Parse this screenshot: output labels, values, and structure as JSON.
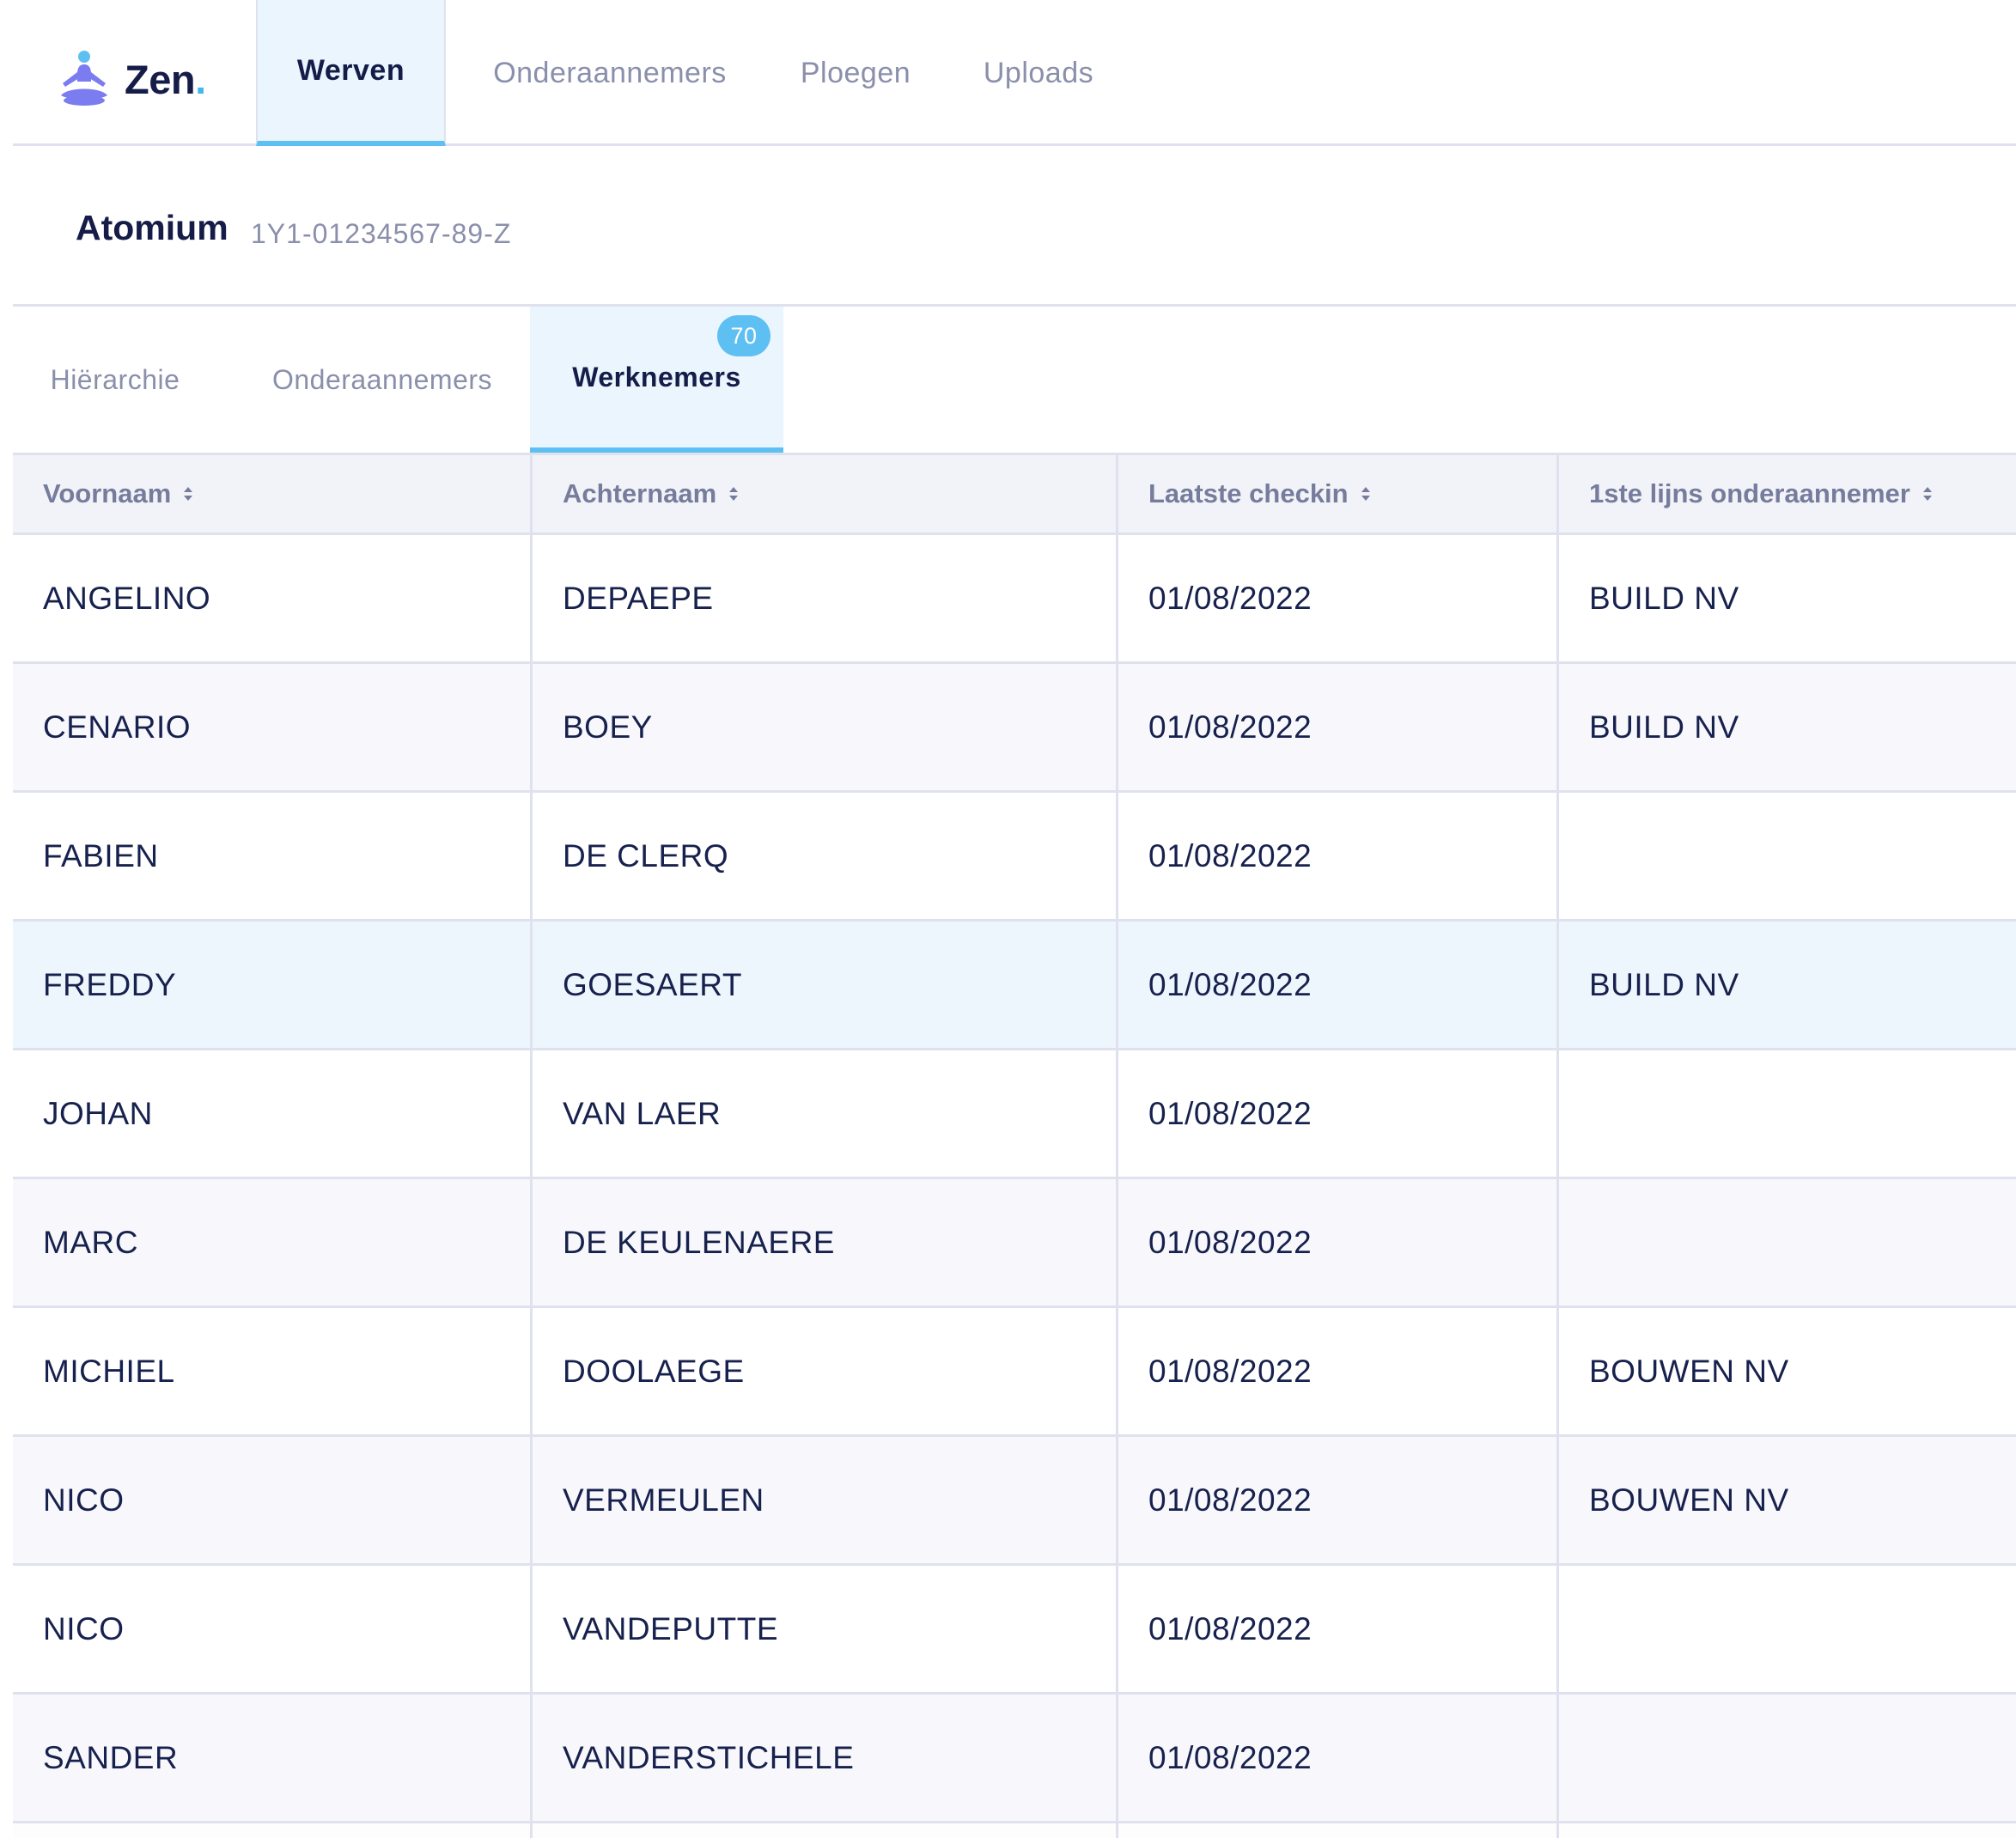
{
  "brand": {
    "name": "Zen",
    "dot": "."
  },
  "nav": {
    "tabs": [
      {
        "label": "Werven",
        "active": true
      },
      {
        "label": "Onderaannemers",
        "active": false
      },
      {
        "label": "Ploegen",
        "active": false
      },
      {
        "label": "Uploads",
        "active": false
      }
    ]
  },
  "project": {
    "name": "Atomium",
    "code": "1Y1-01234567-89-Z"
  },
  "subtabs": [
    {
      "label": "Hiërarchie",
      "active": false
    },
    {
      "label": "Onderaannemers",
      "active": false
    },
    {
      "label": "Werknemers",
      "active": true,
      "badge": "70"
    }
  ],
  "table": {
    "columns": [
      "Voornaam",
      "Achternaam",
      "Laatste checkin",
      "1ste lijns onderaannemer"
    ],
    "rows": [
      [
        "ANGELINO",
        "DEPAEPE",
        "01/08/2022",
        "BUILD NV"
      ],
      [
        "CENARIO",
        "BOEY",
        "01/08/2022",
        "BUILD NV"
      ],
      [
        "FABIEN",
        "DE CLERQ",
        "01/08/2022",
        ""
      ],
      [
        "FREDDY",
        "GOESAERT",
        "01/08/2022",
        "BUILD NV"
      ],
      [
        "JOHAN",
        "VAN LAER",
        "01/08/2022",
        ""
      ],
      [
        "MARC",
        "DE KEULENAERE",
        "01/08/2022",
        ""
      ],
      [
        "MICHIEL",
        "DOOLAEGE",
        "01/08/2022",
        "BOUWEN NV"
      ],
      [
        "NICO",
        "VERMEULEN",
        "01/08/2022",
        "BOUWEN NV"
      ],
      [
        "NICO",
        "VANDEPUTTE",
        "01/08/2022",
        ""
      ],
      [
        "SANDER",
        "VANDERSTICHELE",
        "01/08/2022",
        ""
      ]
    ]
  },
  "colors": {
    "accent": "#5ebff2",
    "active_tab_bg": "#eaf5fe",
    "text_dark": "#17214d",
    "text_muted": "#8a8fab",
    "logo_purple": "#7b7cf0"
  }
}
